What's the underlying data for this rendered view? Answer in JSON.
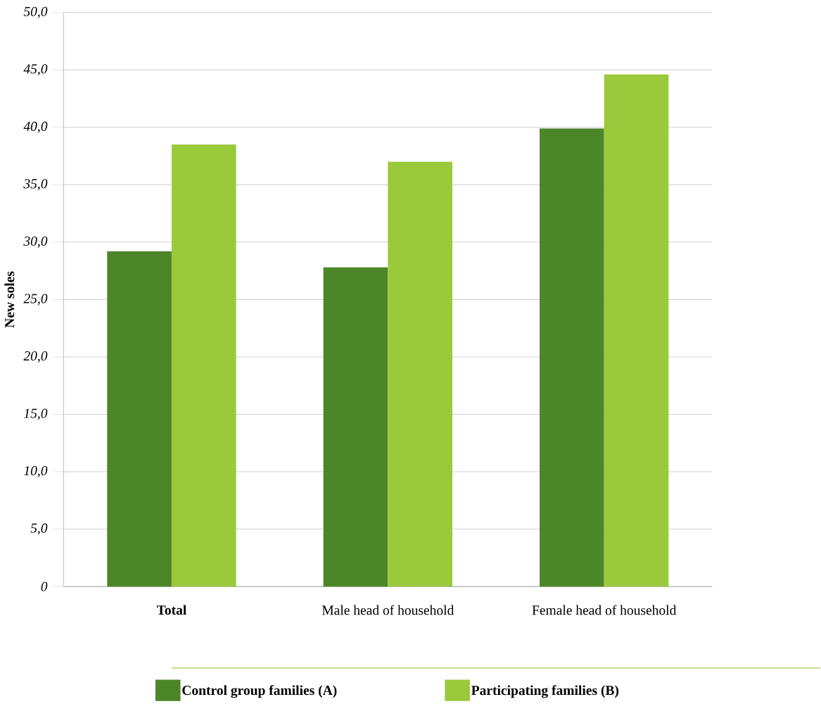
{
  "chart_data": {
    "type": "bar",
    "ylabel": "New soles",
    "categories": [
      "**Total**",
      "Male head of household",
      "Female head of household"
    ],
    "series": [
      {
        "name": "Control group families (A)",
        "color": "#4d8629",
        "values": [
          29.2,
          27.8,
          39.9
        ]
      },
      {
        "name": "Participating families (B)",
        "color": "#9aca3c",
        "values": [
          38.5,
          37.0,
          44.6
        ]
      }
    ],
    "ylim": [
      0,
      50
    ],
    "yticks": [
      {
        "value": 0,
        "label": "0"
      },
      {
        "value": 5,
        "label": "5,0"
      },
      {
        "value": 10,
        "label": "10,0"
      },
      {
        "value": 15,
        "label": "15,0"
      },
      {
        "value": 20,
        "label": "20,0"
      },
      {
        "value": 25,
        "label": "25,0"
      },
      {
        "value": 30,
        "label": "30,0"
      },
      {
        "value": 35,
        "label": "35,0"
      },
      {
        "value": 40,
        "label": "40,0"
      },
      {
        "value": 45,
        "label": "45,0"
      },
      {
        "value": 50,
        "label": "50,0"
      }
    ],
    "grid": "y",
    "legend": "bottom"
  }
}
